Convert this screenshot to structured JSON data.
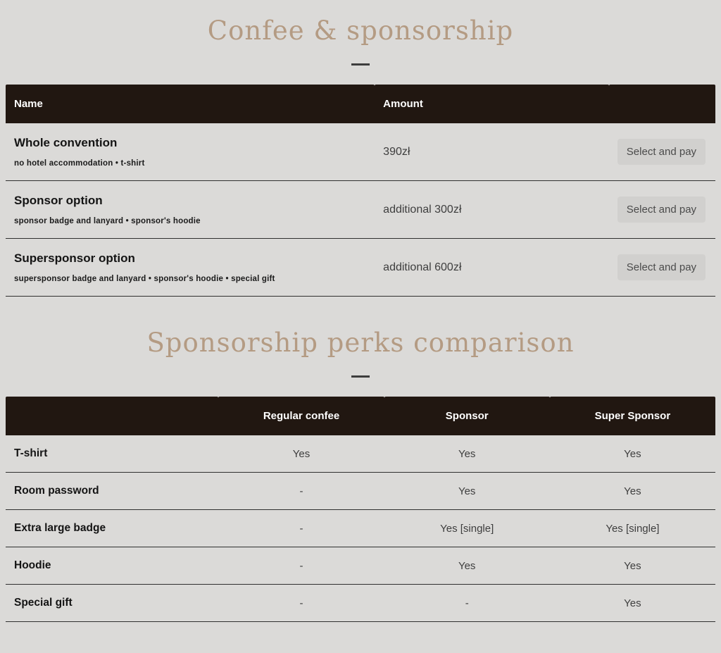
{
  "theme": {
    "page_background": "#dbdad8",
    "title_color": "#b49b83",
    "table_header_background": "#211711",
    "table_header_text": "#ffffff",
    "row_border_color": "#2f2f2f",
    "button_background": "#d1d0ce",
    "button_text": "#4b4b4b"
  },
  "pricing_section": {
    "title": "Confee & sponsorship",
    "table": {
      "columns": [
        "Name",
        "Amount",
        ""
      ],
      "rows": [
        {
          "name": "Whole convention",
          "description": "no hotel accommodation • t-shirt",
          "amount": "390zł",
          "action": "Select and pay"
        },
        {
          "name": "Sponsor option",
          "description": "sponsor badge and lanyard • sponsor's hoodie",
          "amount": "additional 300zł",
          "action": "Select and pay"
        },
        {
          "name": "Supersponsor option",
          "description": "supersponsor badge and lanyard • sponsor's hoodie • special gift",
          "amount": "additional 600zł",
          "action": "Select and pay"
        }
      ]
    }
  },
  "perks_section": {
    "title": "Sponsorship perks comparison",
    "table": {
      "columns": [
        "",
        "Regular confee",
        "Sponsor",
        "Super Sponsor"
      ],
      "rows": [
        {
          "perk": "T-shirt",
          "values": [
            "Yes",
            "Yes",
            "Yes"
          ]
        },
        {
          "perk": "Room password",
          "values": [
            "-",
            "Yes",
            "Yes"
          ]
        },
        {
          "perk": "Extra large badge",
          "values": [
            "-",
            "Yes [single]",
            "Yes [single]"
          ]
        },
        {
          "perk": "Hoodie",
          "values": [
            "-",
            "Yes",
            "Yes"
          ]
        },
        {
          "perk": "Special gift",
          "values": [
            "-",
            "-",
            "Yes"
          ]
        }
      ]
    }
  }
}
